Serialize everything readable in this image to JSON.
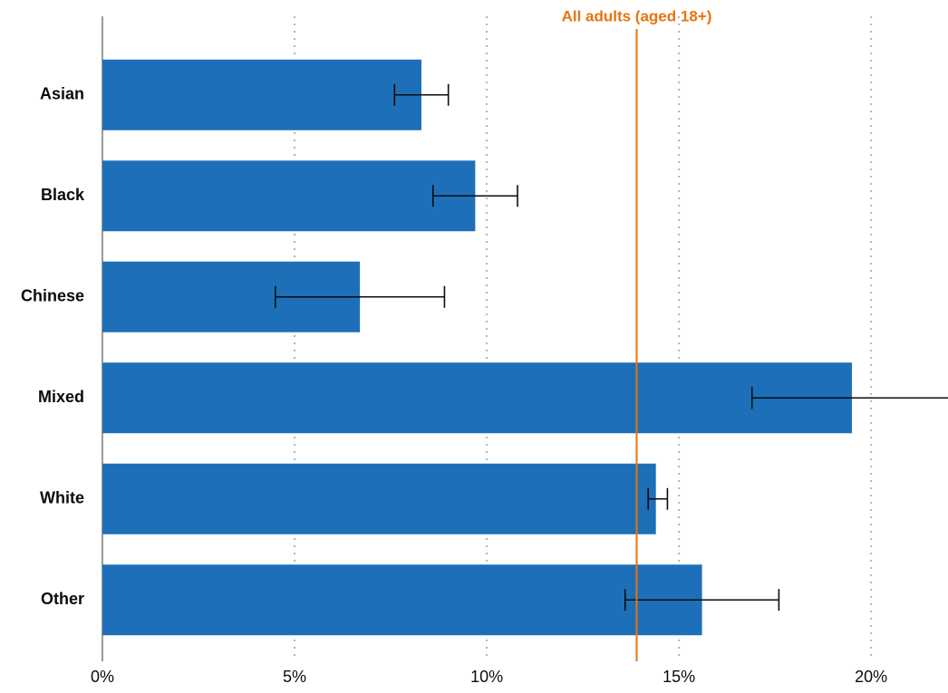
{
  "chart_data": {
    "type": "bar",
    "orientation": "horizontal",
    "categories": [
      "Asian",
      "Black",
      "Chinese",
      "Mixed",
      "White",
      "Other"
    ],
    "values": [
      8.3,
      9.7,
      6.7,
      19.5,
      14.4,
      15.6
    ],
    "error_low": [
      7.6,
      8.6,
      4.5,
      16.9,
      14.2,
      13.6
    ],
    "error_high": [
      9.0,
      10.8,
      8.9,
      22.1,
      14.7,
      17.6
    ],
    "color": "#1d70b8",
    "xlim": [
      0,
      22
    ],
    "xticks": [
      {
        "value": 0,
        "label": "0%"
      },
      {
        "value": 5,
        "label": "5%"
      },
      {
        "value": 10,
        "label": "10%"
      },
      {
        "value": 15,
        "label": "15%"
      },
      {
        "value": 20,
        "label": "20%"
      }
    ],
    "grid": true,
    "reference_line": {
      "value": 13.9,
      "label": "All adults (aged 18+)",
      "color": "#e8730c"
    }
  }
}
